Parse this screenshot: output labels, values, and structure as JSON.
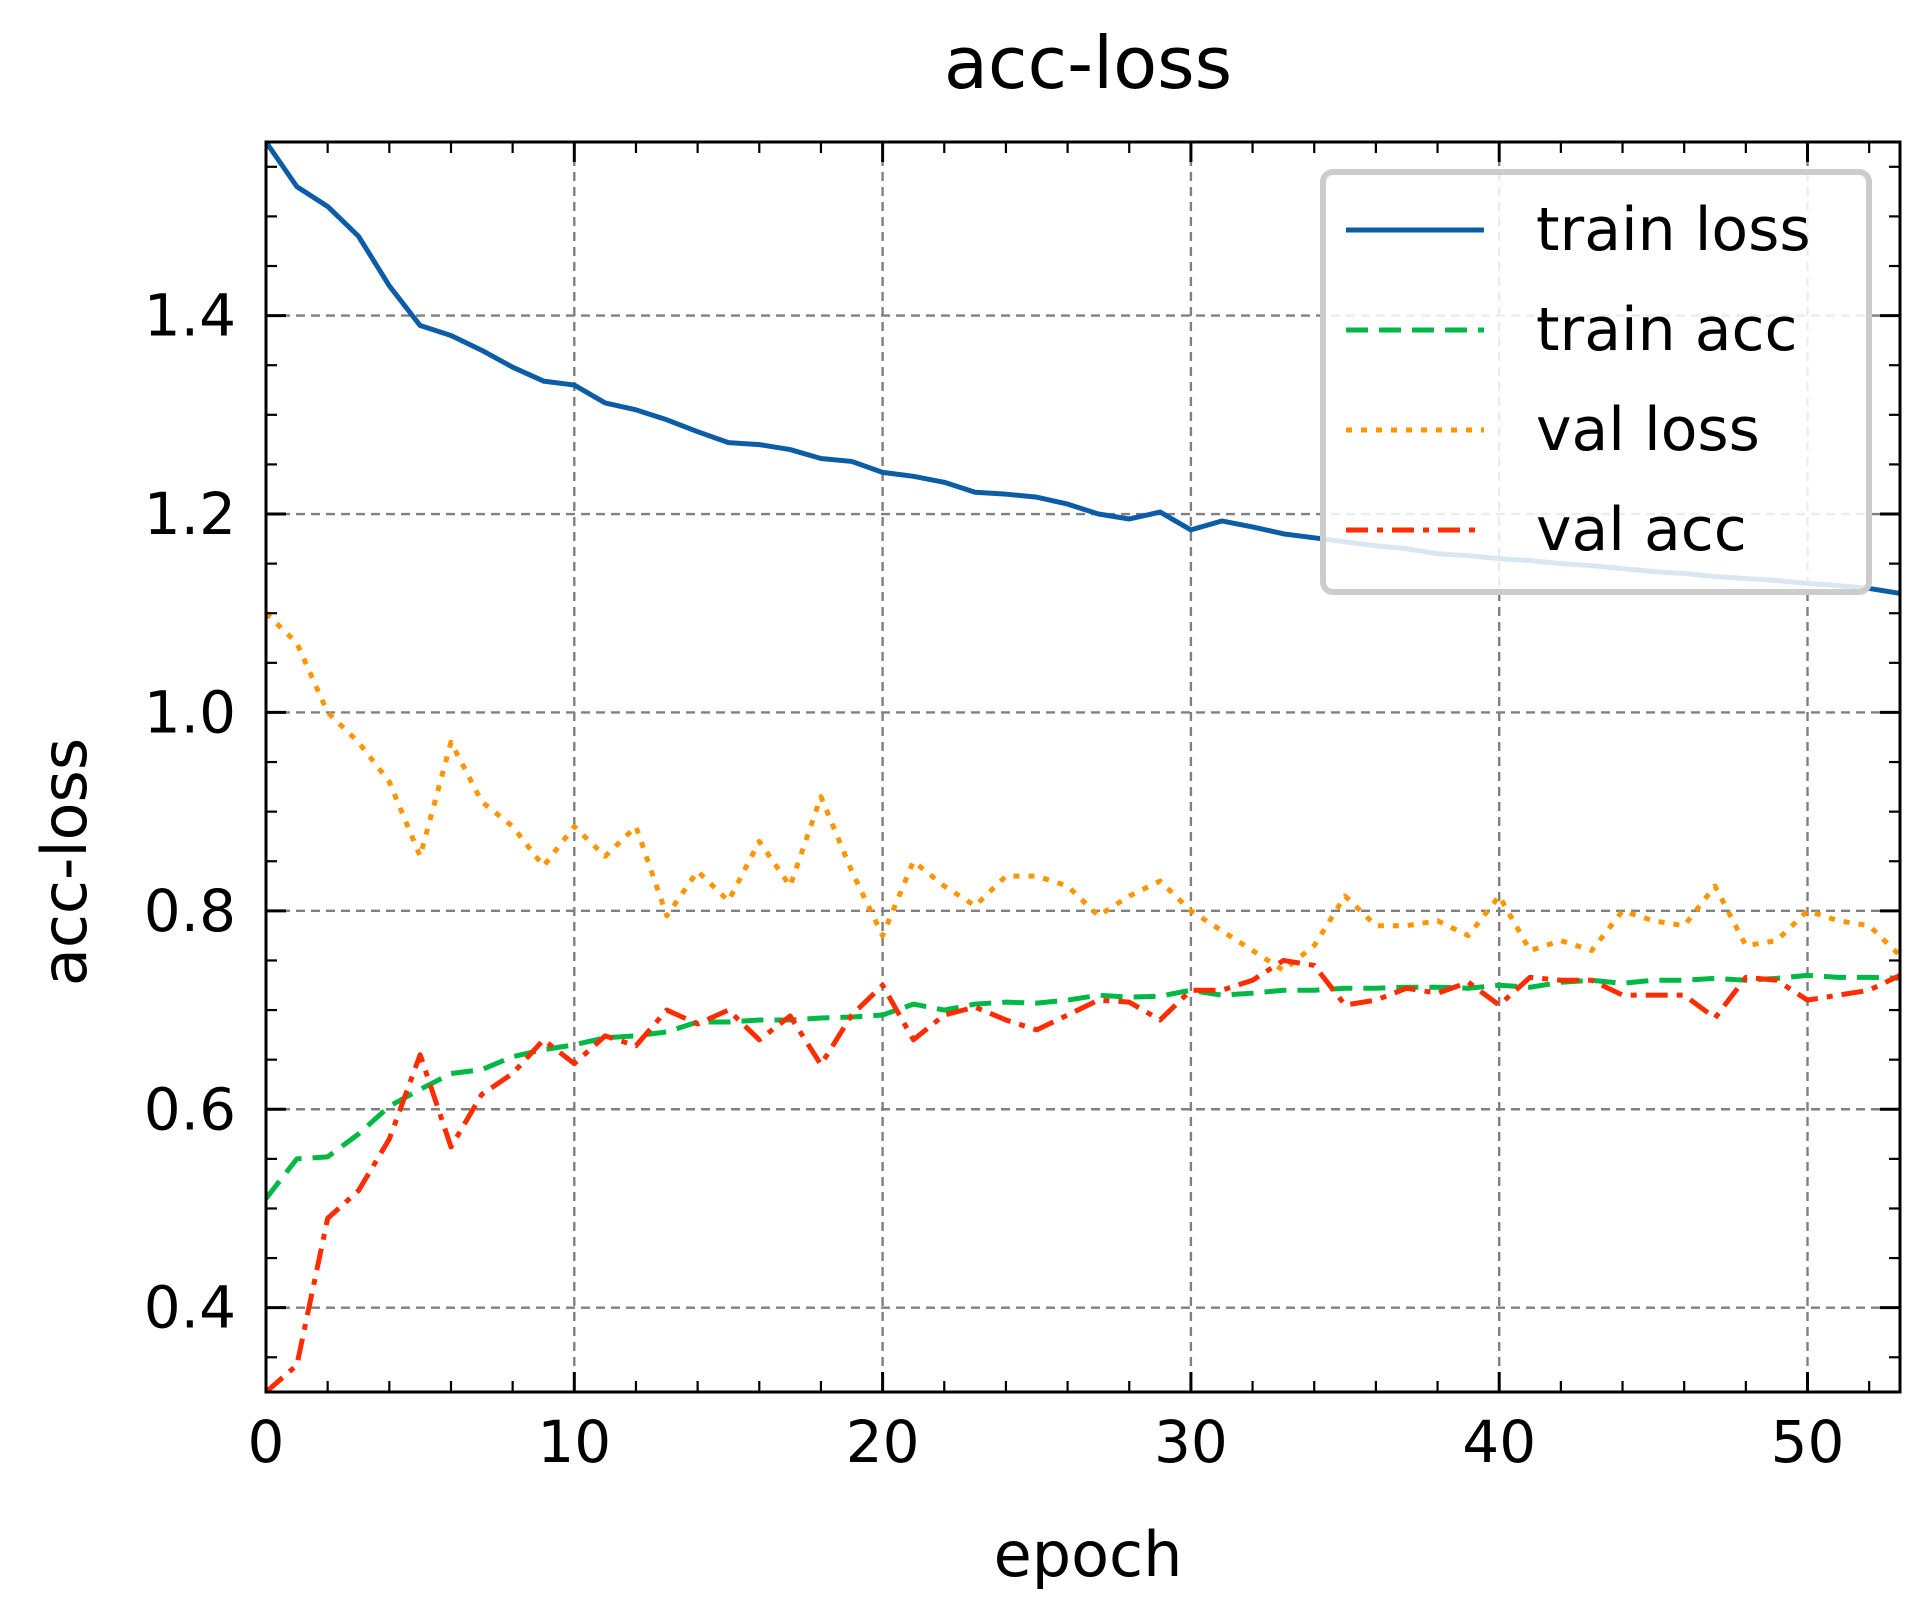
{
  "chart_data": {
    "type": "line",
    "title": "acc-loss",
    "xlabel": "epoch",
    "ylabel": "acc-loss",
    "xlim": [
      0,
      53
    ],
    "ylim": [
      0.315,
      1.575
    ],
    "xticks": [
      0,
      10,
      20,
      30,
      40,
      50
    ],
    "yticks": [
      0.4,
      0.6,
      0.8,
      1.0,
      1.2,
      1.4
    ],
    "xtick_labels": [
      "0",
      "10",
      "20",
      "30",
      "40",
      "50"
    ],
    "ytick_labels": [
      "0.4",
      "0.6",
      "0.8",
      "1.0",
      "1.2",
      "1.4"
    ],
    "grid": true,
    "legend_position": "top-right",
    "x": [
      0,
      1,
      2,
      3,
      4,
      5,
      6,
      7,
      8,
      9,
      10,
      11,
      12,
      13,
      14,
      15,
      16,
      17,
      18,
      19,
      20,
      21,
      22,
      23,
      24,
      25,
      26,
      27,
      28,
      29,
      30,
      31,
      32,
      33,
      34,
      35,
      36,
      37,
      38,
      39,
      40,
      41,
      42,
      43,
      44,
      45,
      46,
      47,
      48,
      49,
      50,
      51,
      52,
      53
    ],
    "series": [
      {
        "name": "train loss",
        "color": "#0C5DA5",
        "dash": "solid",
        "values": [
          1.575,
          1.53,
          1.51,
          1.48,
          1.43,
          1.39,
          1.38,
          1.365,
          1.348,
          1.334,
          1.33,
          1.312,
          1.305,
          1.295,
          1.283,
          1.272,
          1.27,
          1.265,
          1.256,
          1.253,
          1.242,
          1.238,
          1.232,
          1.222,
          1.22,
          1.217,
          1.21,
          1.2,
          1.195,
          1.202,
          1.184,
          1.193,
          1.187,
          1.18,
          1.176,
          1.172,
          1.168,
          1.165,
          1.16,
          1.158,
          1.155,
          1.153,
          1.15,
          1.148,
          1.145,
          1.142,
          1.14,
          1.137,
          1.135,
          1.133,
          1.13,
          1.128,
          1.125,
          1.12
        ]
      },
      {
        "name": "train acc",
        "color": "#00B945",
        "dash": "dashed",
        "values": [
          0.51,
          0.55,
          0.552,
          0.575,
          0.603,
          0.62,
          0.636,
          0.64,
          0.653,
          0.66,
          0.665,
          0.672,
          0.674,
          0.678,
          0.688,
          0.688,
          0.69,
          0.69,
          0.692,
          0.693,
          0.695,
          0.706,
          0.7,
          0.706,
          0.708,
          0.707,
          0.71,
          0.715,
          0.713,
          0.714,
          0.72,
          0.715,
          0.717,
          0.72,
          0.72,
          0.722,
          0.722,
          0.723,
          0.723,
          0.722,
          0.725,
          0.723,
          0.728,
          0.73,
          0.727,
          0.73,
          0.73,
          0.732,
          0.73,
          0.732,
          0.735,
          0.733,
          0.733,
          0.732
        ]
      },
      {
        "name": "val loss",
        "color": "#FF9500",
        "dash": "dotted",
        "values": [
          1.1,
          1.07,
          1.0,
          0.97,
          0.93,
          0.855,
          0.97,
          0.91,
          0.885,
          0.845,
          0.885,
          0.855,
          0.885,
          0.795,
          0.84,
          0.81,
          0.87,
          0.825,
          0.915,
          0.84,
          0.775,
          0.85,
          0.825,
          0.805,
          0.835,
          0.835,
          0.825,
          0.795,
          0.815,
          0.83,
          0.8,
          0.78,
          0.76,
          0.74,
          0.765,
          0.815,
          0.785,
          0.785,
          0.79,
          0.775,
          0.815,
          0.76,
          0.77,
          0.76,
          0.8,
          0.79,
          0.785,
          0.825,
          0.765,
          0.77,
          0.8,
          0.79,
          0.785,
          0.755
        ]
      },
      {
        "name": "val acc",
        "color": "#FF2C00",
        "dash": "dashdot",
        "values": [
          0.315,
          0.342,
          0.49,
          0.518,
          0.57,
          0.655,
          0.562,
          0.615,
          0.636,
          0.67,
          0.646,
          0.674,
          0.664,
          0.7,
          0.686,
          0.7,
          0.67,
          0.694,
          0.645,
          0.695,
          0.725,
          0.67,
          0.695,
          0.703,
          0.69,
          0.68,
          0.695,
          0.71,
          0.708,
          0.69,
          0.72,
          0.72,
          0.73,
          0.75,
          0.745,
          0.705,
          0.71,
          0.722,
          0.717,
          0.728,
          0.705,
          0.733,
          0.73,
          0.73,
          0.715,
          0.715,
          0.715,
          0.692,
          0.733,
          0.73,
          0.71,
          0.715,
          0.72,
          0.735
        ]
      }
    ]
  }
}
